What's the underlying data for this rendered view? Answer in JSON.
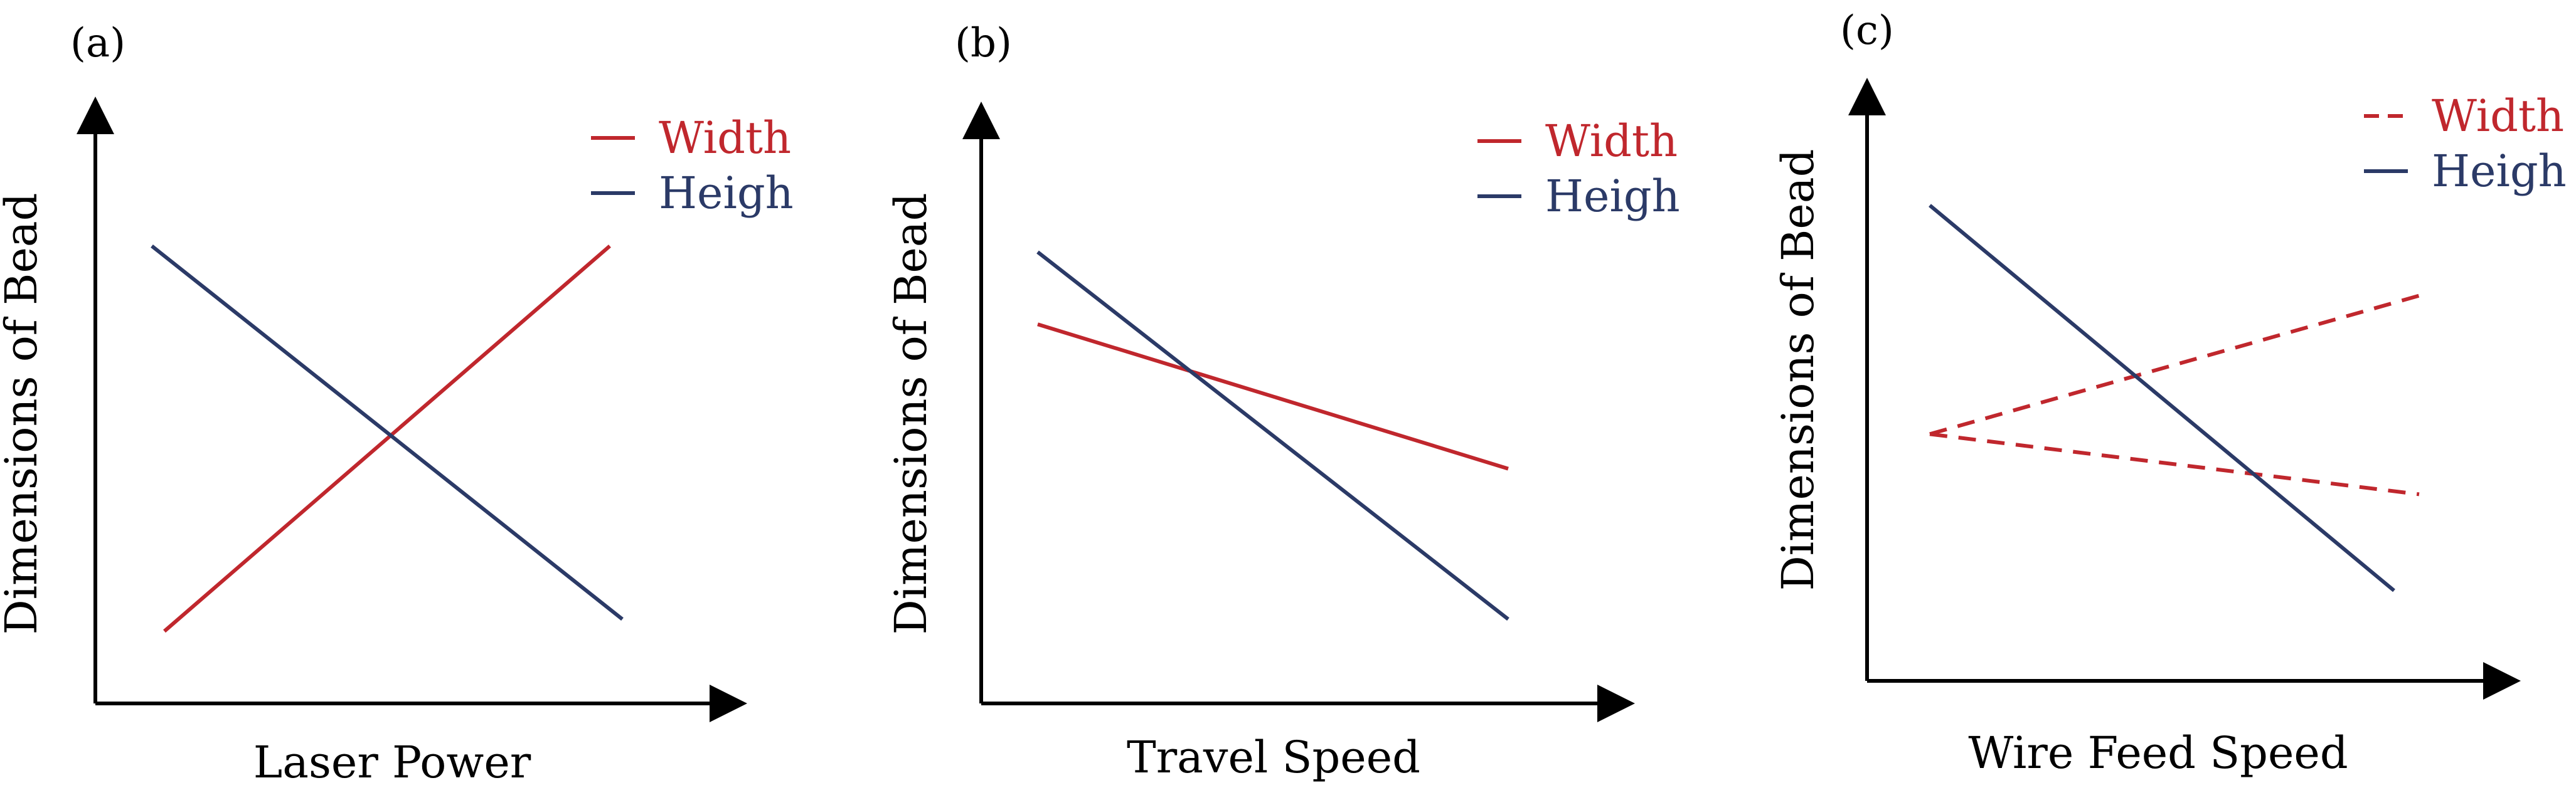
{
  "colors": {
    "width": "#c0272d",
    "height": "#2b3a67",
    "axis": "#000000"
  },
  "chart_data": [
    {
      "type": "line",
      "panel_label": "(a)",
      "xlabel": "Laser Power",
      "ylabel": "Dimensions of Bead",
      "xlim": [
        0,
        1
      ],
      "ylim": [
        0,
        1
      ],
      "legend": "top-right",
      "series": [
        {
          "name": "Width",
          "style": "solid",
          "color": "#c0272d",
          "points": [
            [
              0.11,
              0.12
            ],
            [
              0.82,
              0.76
            ]
          ]
        },
        {
          "name": "Heigh",
          "style": "solid",
          "color": "#2b3a67",
          "points": [
            [
              0.09,
              0.76
            ],
            [
              0.84,
              0.14
            ]
          ]
        }
      ]
    },
    {
      "type": "line",
      "panel_label": "(b)",
      "xlabel": "Travel Speed",
      "ylabel": "Dimensions of Bead",
      "xlim": [
        0,
        1
      ],
      "ylim": [
        0,
        1
      ],
      "legend": "top-right",
      "series": [
        {
          "name": "Width",
          "style": "solid",
          "color": "#c0272d",
          "points": [
            [
              0.09,
              0.63
            ],
            [
              0.84,
              0.39
            ]
          ]
        },
        {
          "name": "Heigh",
          "style": "solid",
          "color": "#2b3a67",
          "points": [
            [
              0.09,
              0.75
            ],
            [
              0.84,
              0.14
            ]
          ]
        }
      ]
    },
    {
      "type": "line",
      "panel_label": "(c)",
      "xlabel": "Wire Feed Speed",
      "ylabel": "Dimensions of Bead",
      "xlim": [
        0,
        1
      ],
      "ylim": [
        0,
        1
      ],
      "legend": "top-right",
      "series": [
        {
          "name": "Width",
          "style": "dashed",
          "color": "#c0272d",
          "points": [
            [
              0.1,
              0.41
            ],
            [
              0.88,
              0.64
            ]
          ]
        },
        {
          "name": "",
          "style": "dashed",
          "color": "#c0272d",
          "points": [
            [
              0.1,
              0.41
            ],
            [
              0.88,
              0.31
            ]
          ]
        },
        {
          "name": "Heigh",
          "style": "solid",
          "color": "#2b3a67",
          "points": [
            [
              0.1,
              0.79
            ],
            [
              0.84,
              0.15
            ]
          ]
        }
      ]
    }
  ]
}
